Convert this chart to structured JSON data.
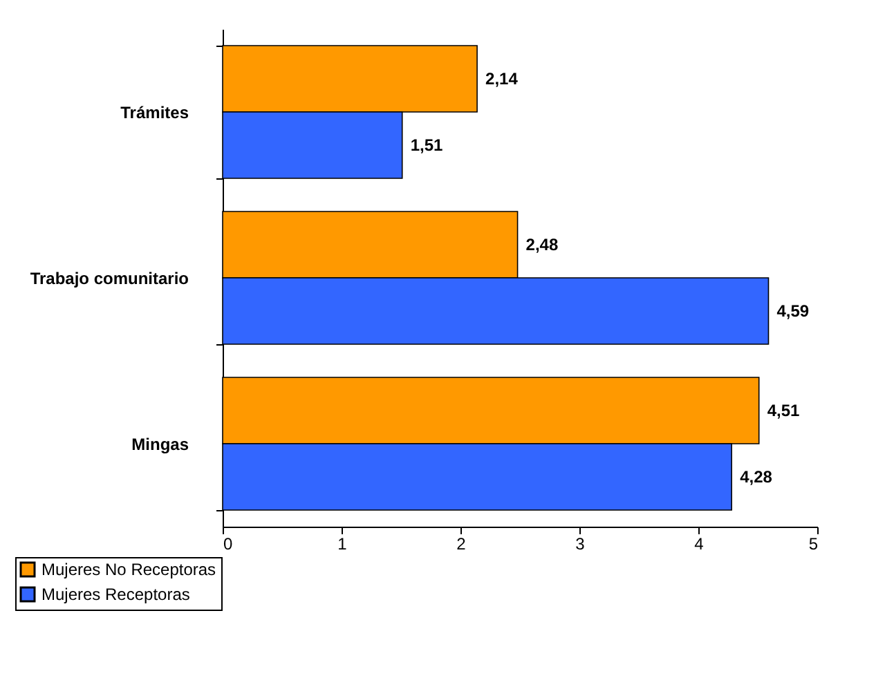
{
  "chart_data": {
    "type": "bar",
    "orientation": "horizontal",
    "categories": [
      "Trámites",
      "Trabajo comunitario",
      "Mingas"
    ],
    "series": [
      {
        "name": "Mujeres No Receptoras",
        "color": "#ff9900",
        "values": [
          2.14,
          2.48,
          4.51
        ],
        "value_labels": [
          "2,14",
          "2,48",
          "4,51"
        ]
      },
      {
        "name": "Mujeres Receptoras",
        "color": "#3366ff",
        "values": [
          1.51,
          4.59,
          4.28
        ],
        "value_labels": [
          "1,51",
          "4,59",
          "4,28"
        ]
      }
    ],
    "xlim": [
      0,
      5
    ],
    "xticks": [
      0,
      1,
      2,
      3,
      4,
      5
    ],
    "grid": false,
    "legend": "bottom left"
  }
}
